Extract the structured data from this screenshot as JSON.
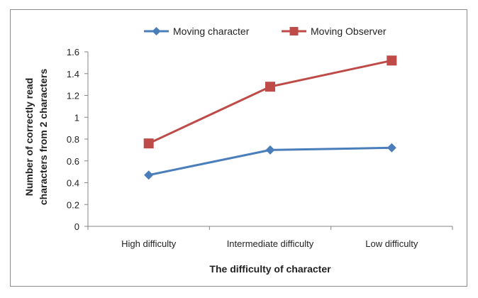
{
  "chart_data": {
    "type": "line",
    "categories": [
      "High difficulty",
      "Intermediate difficulty",
      "Low difficulty"
    ],
    "series": [
      {
        "name": "Moving character",
        "values": [
          0.47,
          0.7,
          0.72
        ],
        "color": "#4a7ebb",
        "marker": "diamond"
      },
      {
        "name": "Moving Observer",
        "values": [
          0.76,
          1.28,
          1.52
        ],
        "color": "#be4b48",
        "marker": "square"
      }
    ],
    "xlabel": "The difficulty of character",
    "ylabel_lines": [
      "Number of correctly read",
      "characters from 2 characters"
    ],
    "ylim": [
      0,
      1.6
    ],
    "yticks": [
      "0",
      "0.2",
      "0.4",
      "0.6",
      "0.8",
      "1",
      "1.2",
      "1.4",
      "1.6"
    ],
    "grid": false,
    "legend_position": "top"
  }
}
